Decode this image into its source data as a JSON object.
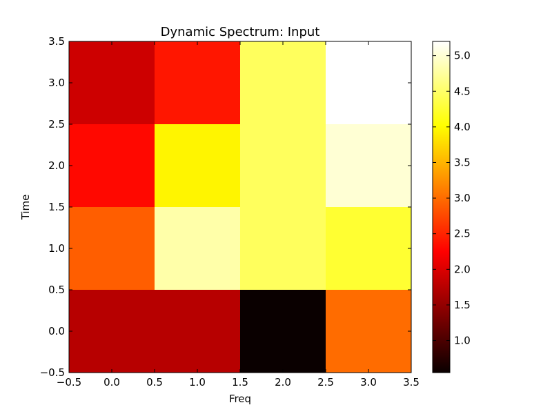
{
  "chart_data": {
    "type": "heatmap",
    "title": "Dynamic Spectrum: Input",
    "xlabel": "Freq",
    "ylabel": "Time",
    "colormap": "hot",
    "x": [
      0,
      1,
      2,
      3
    ],
    "y": [
      0,
      1,
      2,
      3
    ],
    "values": [
      [
        1.75,
        1.75,
        0.55,
        3.0
      ],
      [
        2.9,
        4.8,
        4.45,
        4.25
      ],
      [
        2.3,
        3.95,
        4.45,
        5.0
      ],
      [
        1.9,
        2.4,
        4.45,
        5.2
      ]
    ],
    "xlim": [
      -0.5,
      3.5
    ],
    "ylim": [
      -0.5,
      3.5
    ],
    "xticks": [
      "−0.5",
      "0.0",
      "0.5",
      "1.0",
      "1.5",
      "2.0",
      "2.5",
      "3.0",
      "3.5"
    ],
    "yticks": [
      "−0.5",
      "0.0",
      "0.5",
      "1.0",
      "1.5",
      "2.0",
      "2.5",
      "3.0",
      "3.5"
    ],
    "colorbar": {
      "vmin": 0.55,
      "vmax": 5.2,
      "ticks": [
        1.0,
        1.5,
        2.0,
        2.5,
        3.0,
        3.5,
        4.0,
        4.5,
        5.0
      ],
      "tick_labels": [
        "1.0",
        "1.5",
        "2.0",
        "2.5",
        "3.0",
        "3.5",
        "4.0",
        "4.5",
        "5.0"
      ]
    }
  }
}
